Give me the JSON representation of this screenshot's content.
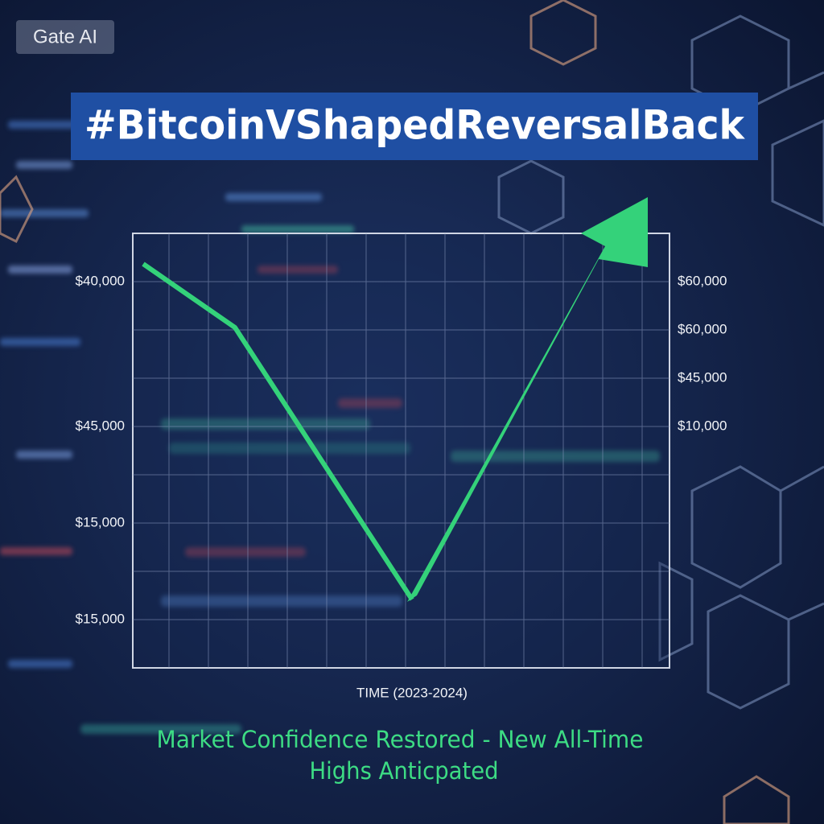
{
  "watermark": "Gate AI",
  "title": "#BitcoinVShapedReversalBack",
  "chart": {
    "left_labels": [
      "$40,000",
      "$45,000",
      "$15,000",
      "$15,000"
    ],
    "right_labels": [
      "$60,000",
      "$60,000",
      "$45,000",
      "$10,000"
    ],
    "x_label": "TIME (2023-2024)"
  },
  "caption": [
    "Market Confidence Restored - New All-Time",
    "Highs Anticpated"
  ]
}
